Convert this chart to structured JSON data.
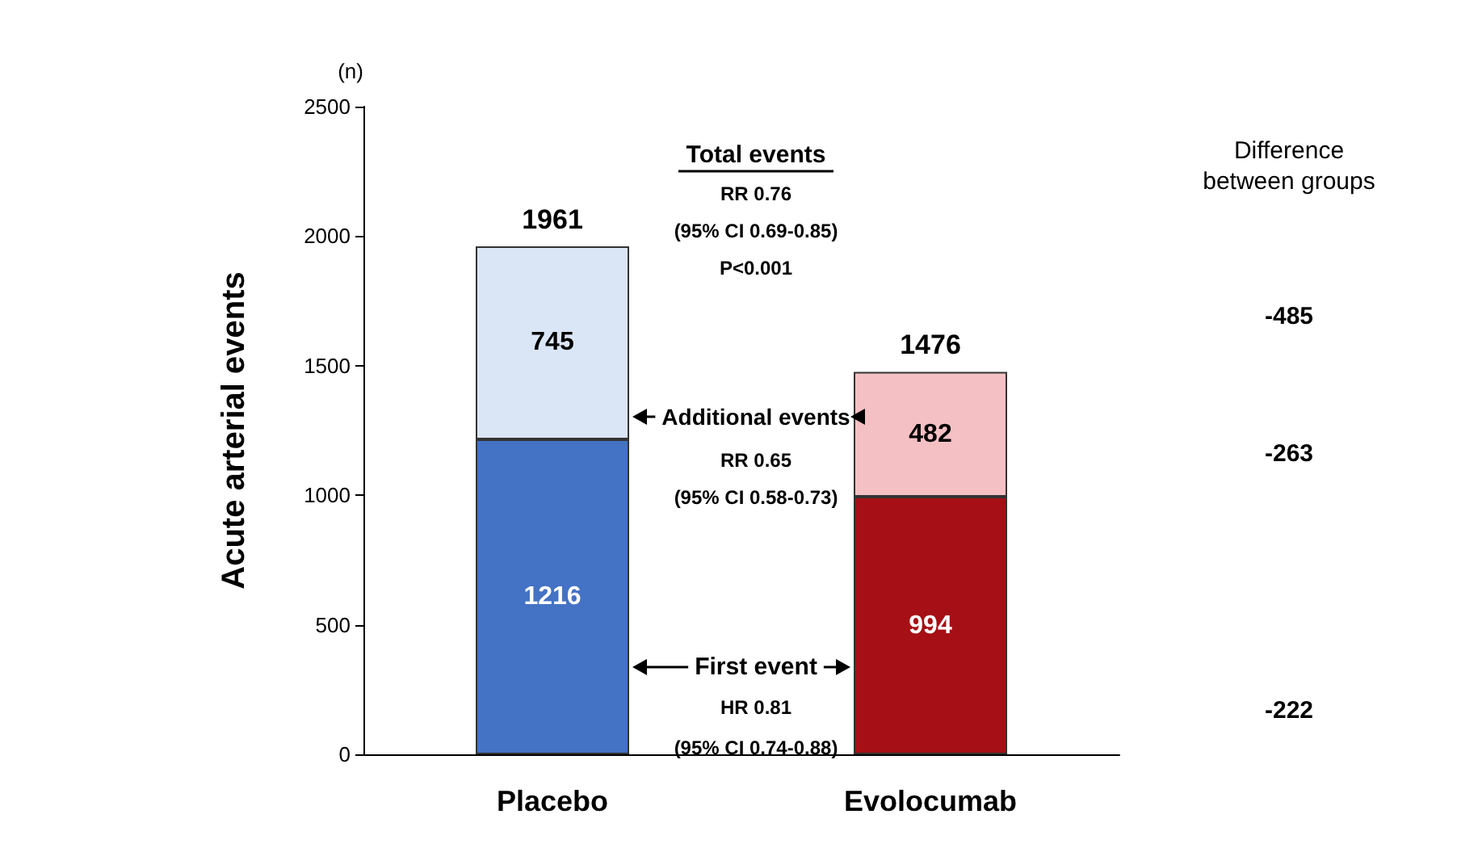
{
  "chart_data": {
    "type": "bar",
    "ylabel": "Acute arterial events",
    "categories": [
      "Placebo",
      "Evolocumab"
    ],
    "stacked": true,
    "series": [
      {
        "colors": [
          "#4472c4",
          "#a50f15"
        ],
        "values": [
          1216,
          994
        ]
      },
      {
        "colors": [
          "#dae6f6",
          "#f4c0c4"
        ],
        "values": [
          745,
          482
        ]
      }
    ],
    "data_labels": true,
    "totals": [
      "1961",
      "1476"
    ],
    "ylim": [
      0,
      2500
    ],
    "yticks": [
      0,
      500,
      1000,
      1500,
      2000,
      2500
    ],
    "grid": false,
    "annotations": [
      "(n)",
      "Total events",
      "RR 0.76",
      "(95% CI 0.69-0.85)",
      "P<0.001",
      "Additional events",
      "RR 0.65",
      "(95% CI 0.58-0.73)",
      "First event",
      "HR 0.81",
      "(95% CI 0.74-0.88)",
      "Difference\nbetween groups",
      "-485",
      "-263",
      "-222"
    ]
  }
}
